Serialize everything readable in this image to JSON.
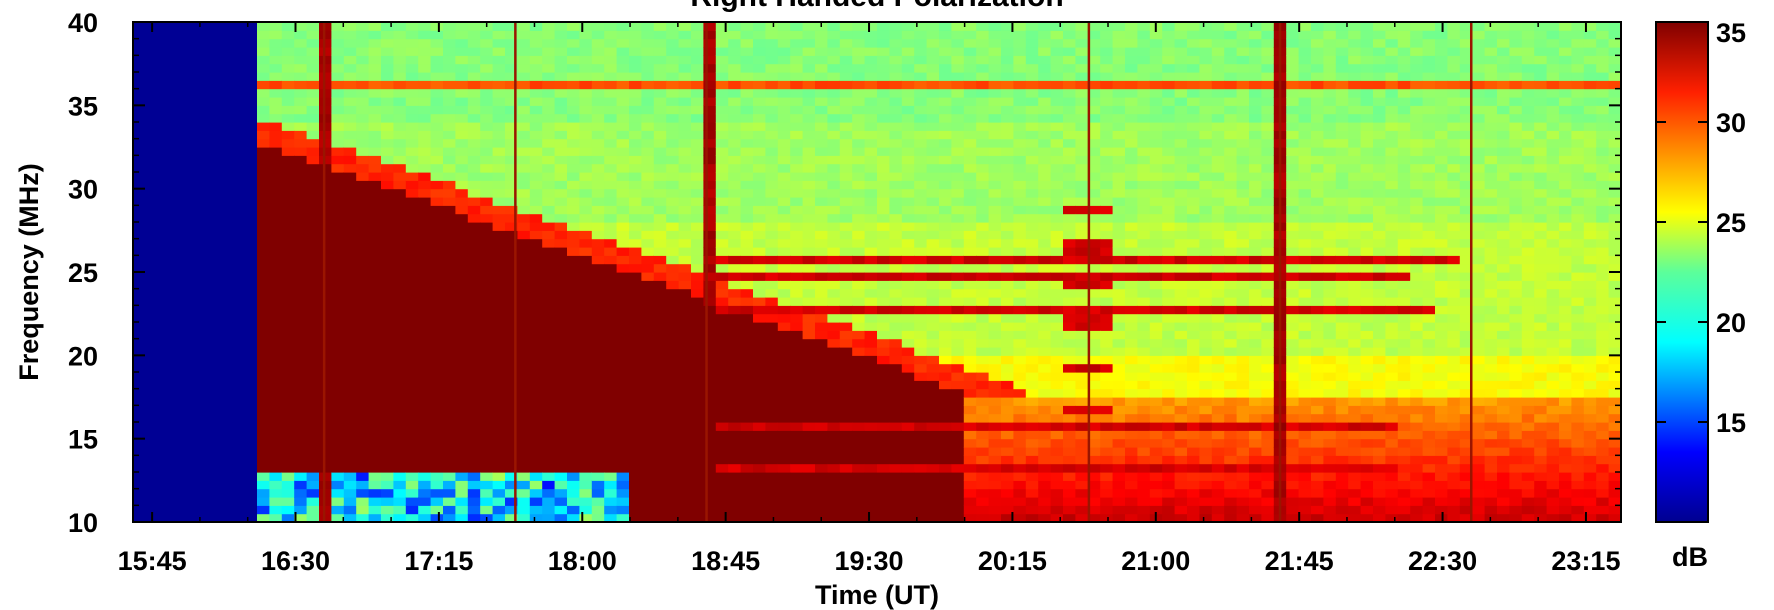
{
  "chart_data": {
    "type": "heatmap",
    "title": "Right Handed Polarization",
    "xlabel": "Time (UT)",
    "ylabel": "Frequency (MHz)",
    "x_tick_labels": [
      "15:45",
      "16:30",
      "17:15",
      "18:00",
      "18:45",
      "19:30",
      "20:15",
      "21:00",
      "21:45",
      "22:30",
      "23:15"
    ],
    "x_ticks_minutes": [
      945,
      990,
      1035,
      1080,
      1125,
      1170,
      1215,
      1260,
      1305,
      1350,
      1395
    ],
    "x_range_minutes": [
      939,
      1406
    ],
    "y_ticks": [
      10,
      15,
      20,
      25,
      30,
      35,
      40
    ],
    "y_range": [
      10,
      40
    ],
    "colorbar": {
      "label": "dB",
      "ticks": [
        15,
        20,
        25,
        30,
        35
      ],
      "range": [
        10,
        35
      ],
      "colormap": "jet"
    },
    "data_description": {
      "no_data_until_minutes": 976,
      "strong_burst_region": "dB>=35 at 10-33 MHz from 16:20 declining to ~14 MHz by 19:45",
      "vertical_spikes_minutes": [
        999,
        1059,
        1119,
        1239,
        1299,
        1359
      ],
      "low_band_dropout_until_minutes": 1096
    }
  }
}
